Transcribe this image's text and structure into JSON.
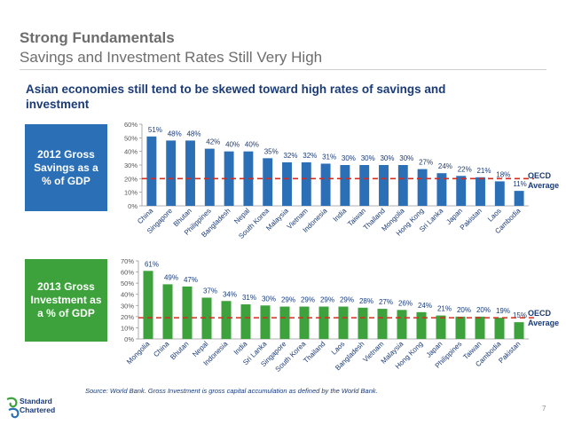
{
  "header": {
    "title": "Strong Fundamentals",
    "subtitle": "Savings and Investment Rates Still Very High",
    "headline": "Asian economies still tend to be skewed toward high rates of savings and investment"
  },
  "boxes": {
    "savings_label": "2012 Gross Savings as a % of GDP",
    "investment_label": "2013 Gross Investment as a % of GDP"
  },
  "oecd_label": "OECD Average",
  "source": "Source: World Bank. Gross Investment is gross capital accumulation as defined by the World Bank.",
  "page_number": "7",
  "logo": {
    "line1": "Standard",
    "line2": "Chartered"
  },
  "colors": {
    "savings_bar": "#2b6fb6",
    "investment_bar": "#3ea23c",
    "oecd_line": "#d62b1f",
    "text_blue": "#1a3b78",
    "axis_gray": "#666666"
  },
  "chart_data": [
    {
      "type": "bar",
      "categories": [
        "China",
        "Singapore",
        "Bhutan",
        "Philippines",
        "Bangladesh",
        "Nepal",
        "South Korea",
        "Malaysia",
        "Vietnam",
        "Indonesia",
        "India",
        "Taiwan",
        "Thailand",
        "Mongolia",
        "Hong Kong",
        "Sri Lanka",
        "Japan",
        "Pakistan",
        "Laos",
        "Cambodia"
      ],
      "values": [
        51,
        48,
        48,
        42,
        40,
        40,
        35,
        32,
        32,
        31,
        30,
        30,
        30,
        30,
        27,
        24,
        22,
        21,
        18,
        11
      ],
      "value_labels": [
        "51%",
        "48%",
        "48%",
        "42%",
        "40%",
        "40%",
        "35%",
        "32%",
        "32%",
        "31%",
        "30%",
        "30%",
        "30%",
        "30%",
        "27%",
        "24%",
        "22%",
        "21%",
        "18%",
        "11%"
      ],
      "ylim": [
        0,
        60
      ],
      "yticks": [
        "0%",
        "10%",
        "20%",
        "30%",
        "40%",
        "50%",
        "60%"
      ],
      "reference_line": {
        "value": 20,
        "label": "OECD Average"
      }
    },
    {
      "type": "bar",
      "categories": [
        "Mongolia",
        "China",
        "Bhutan",
        "Nepal",
        "Indonesia",
        "India",
        "Sri Lanka",
        "Singapore",
        "South Korea",
        "Thailand",
        "Laos",
        "Bangladesh",
        "Vietnam",
        "Malaysia",
        "Hong Kong",
        "Japan",
        "Philippines",
        "Taiwan",
        "Cambodia",
        "Pakistan"
      ],
      "values": [
        61,
        49,
        47,
        37,
        34,
        31,
        30,
        29,
        29,
        29,
        29,
        28,
        27,
        26,
        24,
        21,
        20,
        20,
        19,
        15
      ],
      "value_labels": [
        "61%",
        "49%",
        "47%",
        "37%",
        "34%",
        "31%",
        "30%",
        "29%",
        "29%",
        "29%",
        "29%",
        "28%",
        "27%",
        "26%",
        "24%",
        "21%",
        "20%",
        "20%",
        "19%",
        "15%"
      ],
      "ylim": [
        0,
        70
      ],
      "yticks": [
        "0%",
        "10%",
        "20%",
        "30%",
        "40%",
        "50%",
        "60%",
        "70%"
      ],
      "reference_line": {
        "value": 19,
        "label": "OECD Average"
      }
    }
  ]
}
